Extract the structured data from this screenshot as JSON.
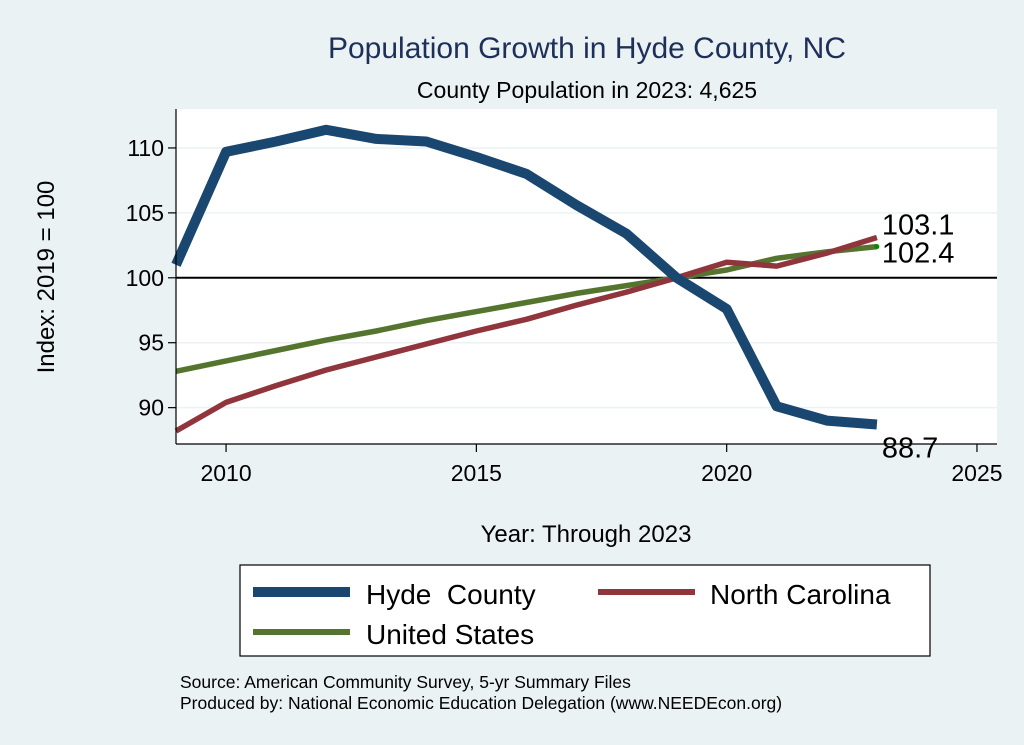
{
  "chart_data": {
    "type": "line",
    "title": "Population Growth in Hyde County, NC",
    "subtitle": "County Population in 2023: 4,625",
    "xlabel": "Year: Through 2023",
    "ylabel": "Index: 2019 = 100",
    "xlim": [
      2009,
      2025.4
    ],
    "ylim": [
      87.2,
      113.0
    ],
    "xticks": [
      2010,
      2015,
      2020,
      2025
    ],
    "yticks": [
      90,
      95,
      100,
      105,
      110
    ],
    "reference_line": 100,
    "grid": true,
    "x": [
      2009,
      2010,
      2011,
      2012,
      2013,
      2014,
      2015,
      2016,
      2017,
      2018,
      2019,
      2020,
      2021,
      2022,
      2023
    ],
    "series": [
      {
        "name": "Hyde  County",
        "color": "#1a476f",
        "values": [
          101.0,
          109.7,
          110.5,
          111.4,
          110.7,
          110.5,
          109.3,
          108.0,
          105.6,
          103.4,
          100.0,
          97.6,
          90.1,
          89.0,
          88.7
        ],
        "end_label": "88.7"
      },
      {
        "name": "North Carolina",
        "color": "#90353b",
        "values": [
          88.2,
          90.4,
          91.7,
          92.9,
          93.9,
          94.9,
          95.9,
          96.8,
          97.9,
          98.9,
          100.0,
          101.2,
          100.9,
          101.9,
          103.1
        ],
        "end_label": "103.1"
      },
      {
        "name": "United States",
        "color": "#55752f",
        "values": [
          92.8,
          93.6,
          94.4,
          95.2,
          95.9,
          96.7,
          97.4,
          98.1,
          98.8,
          99.4,
          100.0,
          100.6,
          101.5,
          102.0,
          102.4
        ],
        "end_label": "102.4"
      }
    ],
    "legend": {
      "position": "bottom",
      "entries": [
        "Hyde  County",
        "North Carolina",
        "United States"
      ]
    },
    "notes": [
      "Source: American Community Survey, 5-yr Summary Files",
      "Produced by: National Economic Education Delegation (www.NEEDEcon.org)"
    ]
  }
}
